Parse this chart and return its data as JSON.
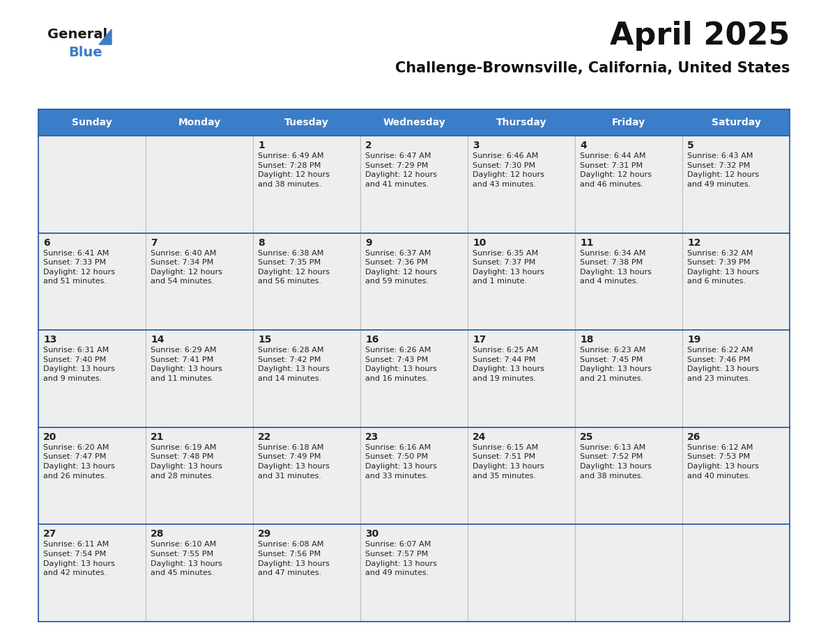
{
  "title": "April 2025",
  "subtitle": "Challenge-Brownsville, California, United States",
  "header_bg_color": "#3A7DC9",
  "header_text_color": "#FFFFFF",
  "cell_bg_color": "#EEEEEE",
  "day_number_color": "#222222",
  "cell_text_color": "#222222",
  "border_color": "#2A60A8",
  "days_of_week": [
    "Sunday",
    "Monday",
    "Tuesday",
    "Wednesday",
    "Thursday",
    "Friday",
    "Saturday"
  ],
  "calendar_data": [
    [
      {
        "day": 0,
        "info": ""
      },
      {
        "day": 0,
        "info": ""
      },
      {
        "day": 1,
        "info": "Sunrise: 6:49 AM\nSunset: 7:28 PM\nDaylight: 12 hours\nand 38 minutes."
      },
      {
        "day": 2,
        "info": "Sunrise: 6:47 AM\nSunset: 7:29 PM\nDaylight: 12 hours\nand 41 minutes."
      },
      {
        "day": 3,
        "info": "Sunrise: 6:46 AM\nSunset: 7:30 PM\nDaylight: 12 hours\nand 43 minutes."
      },
      {
        "day": 4,
        "info": "Sunrise: 6:44 AM\nSunset: 7:31 PM\nDaylight: 12 hours\nand 46 minutes."
      },
      {
        "day": 5,
        "info": "Sunrise: 6:43 AM\nSunset: 7:32 PM\nDaylight: 12 hours\nand 49 minutes."
      }
    ],
    [
      {
        "day": 6,
        "info": "Sunrise: 6:41 AM\nSunset: 7:33 PM\nDaylight: 12 hours\nand 51 minutes."
      },
      {
        "day": 7,
        "info": "Sunrise: 6:40 AM\nSunset: 7:34 PM\nDaylight: 12 hours\nand 54 minutes."
      },
      {
        "day": 8,
        "info": "Sunrise: 6:38 AM\nSunset: 7:35 PM\nDaylight: 12 hours\nand 56 minutes."
      },
      {
        "day": 9,
        "info": "Sunrise: 6:37 AM\nSunset: 7:36 PM\nDaylight: 12 hours\nand 59 minutes."
      },
      {
        "day": 10,
        "info": "Sunrise: 6:35 AM\nSunset: 7:37 PM\nDaylight: 13 hours\nand 1 minute."
      },
      {
        "day": 11,
        "info": "Sunrise: 6:34 AM\nSunset: 7:38 PM\nDaylight: 13 hours\nand 4 minutes."
      },
      {
        "day": 12,
        "info": "Sunrise: 6:32 AM\nSunset: 7:39 PM\nDaylight: 13 hours\nand 6 minutes."
      }
    ],
    [
      {
        "day": 13,
        "info": "Sunrise: 6:31 AM\nSunset: 7:40 PM\nDaylight: 13 hours\nand 9 minutes."
      },
      {
        "day": 14,
        "info": "Sunrise: 6:29 AM\nSunset: 7:41 PM\nDaylight: 13 hours\nand 11 minutes."
      },
      {
        "day": 15,
        "info": "Sunrise: 6:28 AM\nSunset: 7:42 PM\nDaylight: 13 hours\nand 14 minutes."
      },
      {
        "day": 16,
        "info": "Sunrise: 6:26 AM\nSunset: 7:43 PM\nDaylight: 13 hours\nand 16 minutes."
      },
      {
        "day": 17,
        "info": "Sunrise: 6:25 AM\nSunset: 7:44 PM\nDaylight: 13 hours\nand 19 minutes."
      },
      {
        "day": 18,
        "info": "Sunrise: 6:23 AM\nSunset: 7:45 PM\nDaylight: 13 hours\nand 21 minutes."
      },
      {
        "day": 19,
        "info": "Sunrise: 6:22 AM\nSunset: 7:46 PM\nDaylight: 13 hours\nand 23 minutes."
      }
    ],
    [
      {
        "day": 20,
        "info": "Sunrise: 6:20 AM\nSunset: 7:47 PM\nDaylight: 13 hours\nand 26 minutes."
      },
      {
        "day": 21,
        "info": "Sunrise: 6:19 AM\nSunset: 7:48 PM\nDaylight: 13 hours\nand 28 minutes."
      },
      {
        "day": 22,
        "info": "Sunrise: 6:18 AM\nSunset: 7:49 PM\nDaylight: 13 hours\nand 31 minutes."
      },
      {
        "day": 23,
        "info": "Sunrise: 6:16 AM\nSunset: 7:50 PM\nDaylight: 13 hours\nand 33 minutes."
      },
      {
        "day": 24,
        "info": "Sunrise: 6:15 AM\nSunset: 7:51 PM\nDaylight: 13 hours\nand 35 minutes."
      },
      {
        "day": 25,
        "info": "Sunrise: 6:13 AM\nSunset: 7:52 PM\nDaylight: 13 hours\nand 38 minutes."
      },
      {
        "day": 26,
        "info": "Sunrise: 6:12 AM\nSunset: 7:53 PM\nDaylight: 13 hours\nand 40 minutes."
      }
    ],
    [
      {
        "day": 27,
        "info": "Sunrise: 6:11 AM\nSunset: 7:54 PM\nDaylight: 13 hours\nand 42 minutes."
      },
      {
        "day": 28,
        "info": "Sunrise: 6:10 AM\nSunset: 7:55 PM\nDaylight: 13 hours\nand 45 minutes."
      },
      {
        "day": 29,
        "info": "Sunrise: 6:08 AM\nSunset: 7:56 PM\nDaylight: 13 hours\nand 47 minutes."
      },
      {
        "day": 30,
        "info": "Sunrise: 6:07 AM\nSunset: 7:57 PM\nDaylight: 13 hours\nand 49 minutes."
      },
      {
        "day": 0,
        "info": ""
      },
      {
        "day": 0,
        "info": ""
      },
      {
        "day": 0,
        "info": ""
      }
    ]
  ],
  "logo_general_color": "#1a1a1a",
  "logo_blue_color": "#3A7DC9",
  "title_fontsize": 32,
  "subtitle_fontsize": 15,
  "header_fontsize": 10,
  "day_num_fontsize": 10,
  "cell_text_fontsize": 8
}
